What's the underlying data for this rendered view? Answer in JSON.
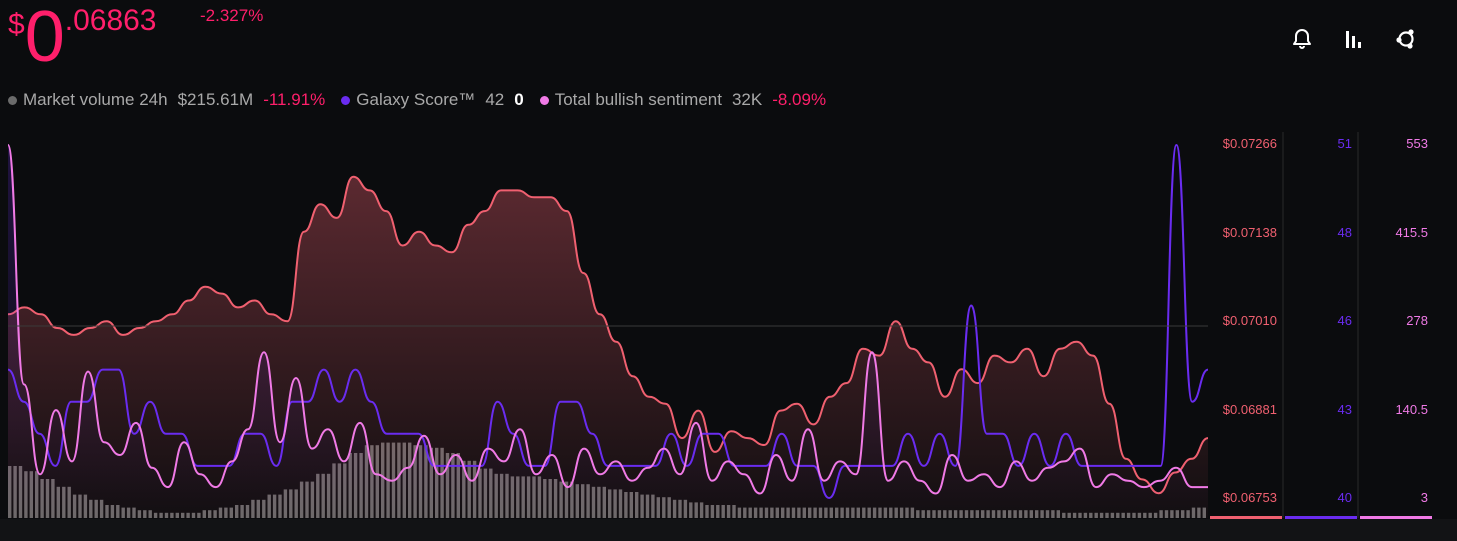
{
  "header": {
    "currency_symbol": "$",
    "price_integer": "0",
    "price_decimal": ".06863",
    "change_percent": "-2.327%"
  },
  "toolbar": {
    "icons": [
      "bell-icon",
      "bar-chart-icon",
      "network-share-icon"
    ]
  },
  "legend": {
    "items": [
      {
        "label": "Market volume 24h",
        "value": "$215.61M",
        "change": "-11.91%",
        "color": "#6b6b6b"
      },
      {
        "label": "Galaxy Score™",
        "value": "42",
        "change": "0",
        "color": "#6a2cf0"
      },
      {
        "label": "Total bullish sentiment",
        "value": "32K",
        "change": "-8.09%",
        "color": "#f07ae6"
      }
    ]
  },
  "colors": {
    "price_line": "#f06070",
    "galaxy": "#6a2cf0",
    "sentiment": "#f07ae6",
    "volume": "#7a7a7a",
    "accent": "#ff1f6b"
  },
  "chart_data": {
    "type": "line",
    "axes": {
      "price": {
        "ticks": [
          "$0.07266",
          "$0.07138",
          "$0.07010",
          "$0.06881",
          "$0.06753"
        ],
        "range": [
          0.06753,
          0.07266
        ]
      },
      "galaxy": {
        "ticks": [
          "51",
          "48",
          "46",
          "43",
          "40"
        ],
        "range": [
          40,
          51
        ]
      },
      "sentiment": {
        "ticks": [
          "553",
          "415.5",
          "278",
          "140.5",
          "3"
        ],
        "range": [
          3,
          553
        ]
      }
    },
    "series": [
      {
        "name": "Price",
        "axis": "price",
        "values": [
          0.0702,
          0.0703,
          0.0702,
          0.07,
          0.0699,
          0.07,
          0.0701,
          0.0699,
          0.07,
          0.0701,
          0.0702,
          0.0704,
          0.0706,
          0.0705,
          0.0703,
          0.0704,
          0.0702,
          0.0701,
          0.0714,
          0.0718,
          0.0716,
          0.0722,
          0.072,
          0.0717,
          0.0712,
          0.0714,
          0.0712,
          0.0711,
          0.0715,
          0.0717,
          0.072,
          0.072,
          0.0719,
          0.0719,
          0.0717,
          0.0708,
          0.0702,
          0.0698,
          0.0693,
          0.069,
          0.0689,
          0.0684,
          0.0688,
          0.0682,
          0.0685,
          0.0684,
          0.0683,
          0.0688,
          0.0689,
          0.0686,
          0.069,
          0.0692,
          0.0697,
          0.0696,
          0.0701,
          0.0697,
          0.0695,
          0.069,
          0.0694,
          0.0692,
          0.0696,
          0.0695,
          0.0697,
          0.0693,
          0.0697,
          0.0698,
          0.0696,
          0.0689,
          0.0681,
          0.0678,
          0.0676,
          0.0679,
          0.0681,
          0.0684
        ]
      },
      {
        "name": "Galaxy Score™",
        "axis": "galaxy",
        "values": [
          44,
          43,
          42,
          41,
          43,
          43,
          44,
          44,
          42,
          43,
          42,
          42,
          41,
          41,
          41,
          42,
          42,
          41,
          43,
          43,
          44,
          43,
          44,
          43,
          42,
          42,
          42,
          41,
          41,
          41,
          41,
          43,
          42,
          41,
          41,
          43,
          43,
          42,
          41,
          41,
          41,
          41,
          42,
          41,
          42,
          42,
          41,
          41,
          41,
          42,
          41,
          41,
          40,
          41,
          41,
          41,
          41,
          42,
          41,
          42,
          41,
          46,
          42,
          42,
          41,
          42,
          41,
          42,
          41,
          41,
          41,
          41,
          41,
          41,
          51,
          43,
          44
        ]
      },
      {
        "name": "Total bullish sentiment",
        "axis": "sentiment",
        "values": [
          553,
          180,
          40,
          140,
          60,
          200,
          90,
          70,
          120,
          50,
          20,
          90,
          40,
          20,
          60,
          110,
          230,
          90,
          190,
          80,
          110,
          60,
          120,
          40,
          30,
          50,
          100,
          40,
          70,
          30,
          80,
          60,
          110,
          40,
          70,
          20,
          80,
          40,
          60,
          30,
          50,
          80,
          40,
          120,
          30,
          60,
          40,
          10,
          70,
          30,
          110,
          30,
          60,
          40,
          230,
          30,
          60,
          30,
          10,
          70,
          30,
          40,
          20,
          60,
          30,
          50,
          60,
          80,
          20,
          40,
          30,
          20,
          30,
          50,
          20,
          20
        ]
      },
      {
        "name": "Market volume 24h",
        "axis": "volume",
        "values": [
          0.2,
          0.18,
          0.15,
          0.12,
          0.09,
          0.07,
          0.05,
          0.04,
          0.03,
          0.02,
          0.02,
          0.02,
          0.03,
          0.04,
          0.05,
          0.07,
          0.09,
          0.11,
          0.14,
          0.17,
          0.21,
          0.25,
          0.28,
          0.29,
          0.29,
          0.28,
          0.27,
          0.25,
          0.22,
          0.19,
          0.17,
          0.16,
          0.16,
          0.15,
          0.14,
          0.13,
          0.12,
          0.11,
          0.1,
          0.09,
          0.08,
          0.07,
          0.06,
          0.05,
          0.05,
          0.04,
          0.04,
          0.04,
          0.04,
          0.04,
          0.04,
          0.04,
          0.04,
          0.04,
          0.04,
          0.04,
          0.03,
          0.03,
          0.03,
          0.03,
          0.03,
          0.03,
          0.03,
          0.03,
          0.03,
          0.02,
          0.02,
          0.02,
          0.02,
          0.02,
          0.02,
          0.03,
          0.03,
          0.04
        ]
      }
    ],
    "grid": false,
    "legend_position": "top-left"
  }
}
